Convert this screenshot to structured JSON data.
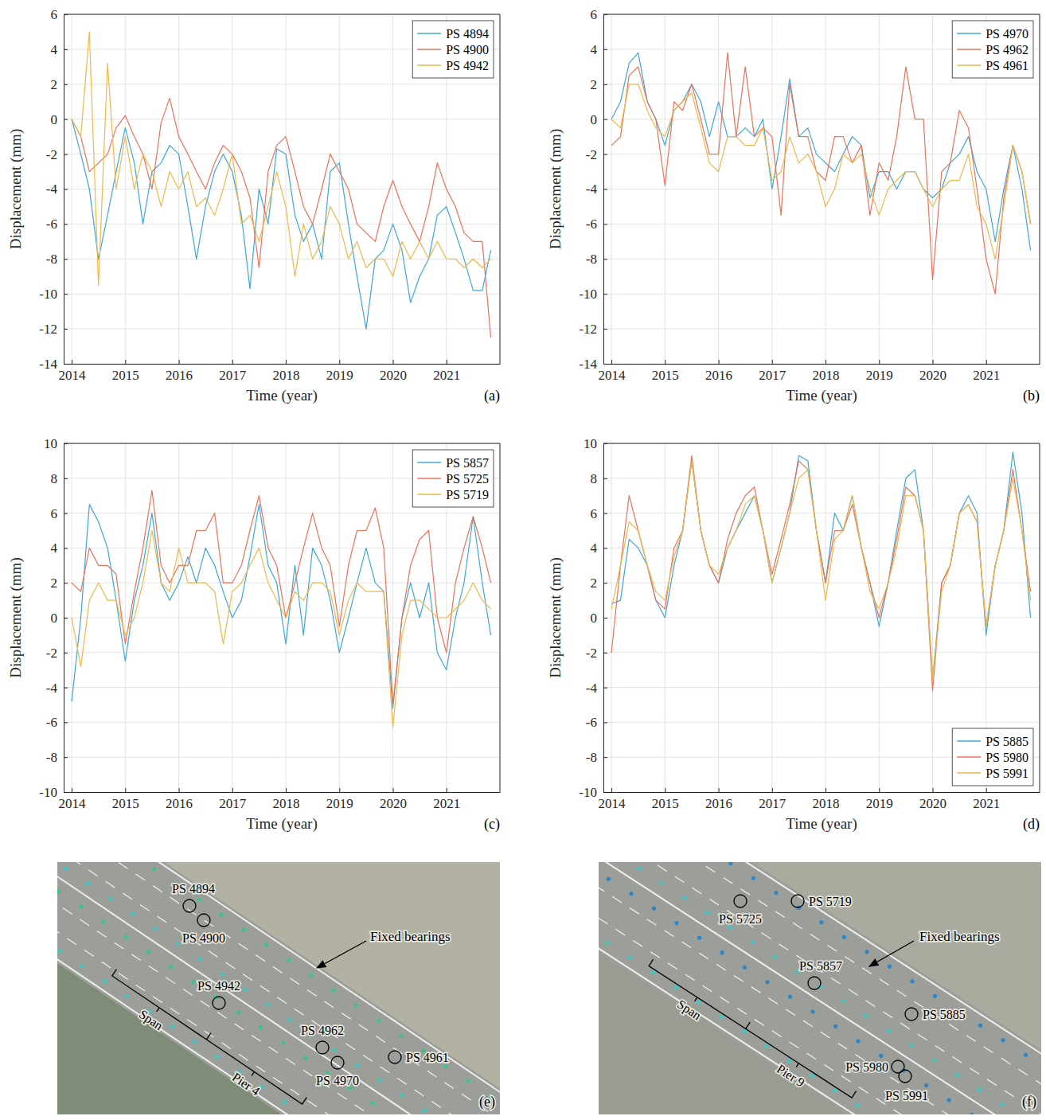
{
  "chart_data": [
    {
      "type": "line",
      "annotation": "(a)",
      "x_label": "Time (year)",
      "y_label": "Displacement (mm)",
      "xlim": [
        2013.85,
        2022
      ],
      "xticks": [
        2014,
        2015,
        2016,
        2017,
        2018,
        2019,
        2020,
        2021
      ],
      "ylim": [
        -14,
        6
      ],
      "yticks": [
        -14,
        -12,
        -10,
        -8,
        -6,
        -4,
        -2,
        0,
        2,
        4,
        6
      ],
      "grid": true,
      "legend": "upper right",
      "x": [
        2014,
        2014.17,
        2014.33,
        2014.5,
        2014.67,
        2014.83,
        2015,
        2015.17,
        2015.33,
        2015.5,
        2015.67,
        2015.83,
        2016,
        2016.17,
        2016.33,
        2016.5,
        2016.67,
        2016.83,
        2017,
        2017.17,
        2017.33,
        2017.5,
        2017.67,
        2017.83,
        2018,
        2018.17,
        2018.33,
        2018.5,
        2018.67,
        2018.83,
        2019,
        2019.17,
        2019.33,
        2019.5,
        2019.67,
        2019.83,
        2020,
        2020.17,
        2020.33,
        2020.5,
        2020.67,
        2020.83,
        2021,
        2021.17,
        2021.33,
        2021.5,
        2021.67,
        2021.83
      ],
      "series": [
        {
          "name": "PS 4894",
          "color": "#3fa7d6",
          "values": [
            0,
            -2,
            -4,
            -8,
            -5.5,
            -3,
            -0.5,
            -2.5,
            -6,
            -3,
            -2.5,
            -1.5,
            -2,
            -5,
            -8,
            -5,
            -3,
            -2,
            -3,
            -5.5,
            -9.7,
            -4,
            -6,
            -1.7,
            -2,
            -5.5,
            -7,
            -6,
            -8,
            -3,
            -2.5,
            -6,
            -9,
            -12,
            -8,
            -7.5,
            -6,
            -7.5,
            -10.5,
            -9,
            -8,
            -5.5,
            -5,
            -6.5,
            -8,
            -9.8,
            -9.8,
            -7.5
          ]
        },
        {
          "name": "PS 4900",
          "color": "#e8735a",
          "values": [
            0,
            -1,
            -3,
            -2.5,
            -2,
            -0.5,
            0.2,
            -1,
            -2,
            -4,
            -0.2,
            1.2,
            -1,
            -2,
            -3,
            -4,
            -2.5,
            -1.5,
            -2,
            -3,
            -4.5,
            -8.5,
            -3,
            -1.5,
            -1,
            -3,
            -5,
            -6,
            -4,
            -2,
            -3,
            -4,
            -6,
            -6.5,
            -7,
            -5,
            -3.5,
            -5,
            -6,
            -7,
            -5,
            -2.5,
            -4,
            -5,
            -6.5,
            -7,
            -7,
            -12.5
          ]
        },
        {
          "name": "PS 4942",
          "color": "#edb94a",
          "values": [
            0,
            -1,
            5,
            -9.5,
            3.2,
            -4,
            -1,
            -4,
            -2,
            -3,
            -5,
            -3,
            -4,
            -3,
            -5,
            -4.5,
            -5.5,
            -4,
            -2,
            -6,
            -5.5,
            -7,
            -5,
            -3,
            -5,
            -9,
            -6,
            -8,
            -7,
            -5,
            -6,
            -8,
            -7,
            -8.5,
            -8,
            -8,
            -9,
            -7,
            -8,
            -7,
            -8,
            -7,
            -8,
            -8,
            -8.5,
            -8,
            -8.5,
            -8
          ]
        }
      ]
    },
    {
      "type": "line",
      "annotation": "(b)",
      "x_label": "Time (year)",
      "y_label": "Displacement (mm)",
      "xlim": [
        2013.85,
        2022
      ],
      "xticks": [
        2014,
        2015,
        2016,
        2017,
        2018,
        2019,
        2020,
        2021
      ],
      "ylim": [
        -14,
        6
      ],
      "yticks": [
        -14,
        -12,
        -10,
        -8,
        -6,
        -4,
        -2,
        0,
        2,
        4,
        6
      ],
      "grid": true,
      "legend": "upper right",
      "x": [
        2014,
        2014.17,
        2014.33,
        2014.5,
        2014.67,
        2014.83,
        2015,
        2015.17,
        2015.33,
        2015.5,
        2015.67,
        2015.83,
        2016,
        2016.17,
        2016.33,
        2016.5,
        2016.67,
        2016.83,
        2017,
        2017.17,
        2017.33,
        2017.5,
        2017.67,
        2017.83,
        2018,
        2018.17,
        2018.33,
        2018.5,
        2018.67,
        2018.83,
        2019,
        2019.17,
        2019.33,
        2019.5,
        2019.67,
        2019.83,
        2020,
        2020.17,
        2020.33,
        2020.5,
        2020.67,
        2020.83,
        2021,
        2021.17,
        2021.33,
        2021.5,
        2021.67,
        2021.83
      ],
      "series": [
        {
          "name": "PS 4970",
          "color": "#3fa7d6",
          "values": [
            0,
            1,
            3.2,
            3.8,
            1,
            0,
            -1.5,
            0.5,
            1,
            2,
            1,
            -1,
            1,
            -1,
            -1,
            -0.5,
            -1,
            0,
            -4,
            -1,
            2.3,
            -1,
            -0.5,
            -2,
            -2.5,
            -3,
            -2,
            -1,
            -1.5,
            -4.5,
            -3,
            -3,
            -4,
            -3,
            -3,
            -4,
            -4.5,
            -4,
            -2.5,
            -2,
            -1,
            -3,
            -4,
            -7,
            -4,
            -1.5,
            -4,
            -7.5
          ]
        },
        {
          "name": "PS 4962",
          "color": "#e8735a",
          "values": [
            -1.5,
            -1,
            2.5,
            3,
            1,
            0,
            -3.8,
            1,
            0.5,
            2,
            0,
            -2,
            -2,
            3.8,
            -1,
            3,
            -1,
            -0.5,
            -1,
            -5.5,
            2,
            -1,
            -1,
            -3,
            -3.5,
            -1,
            -1,
            -2.5,
            -1.5,
            -5.5,
            -2.5,
            -3.5,
            -1,
            3,
            0,
            0,
            -9.2,
            -3,
            -2.5,
            0.5,
            -0.5,
            -4,
            -8,
            -10,
            -4.5,
            -1.5,
            -3,
            -6
          ]
        },
        {
          "name": "PS 4961",
          "color": "#edb94a",
          "values": [
            0,
            -0.5,
            2,
            2,
            0.5,
            -0.5,
            -1,
            0.5,
            1,
            1.5,
            -0.5,
            -2.5,
            -3,
            -1,
            -1,
            -1.5,
            -1.5,
            -0.5,
            -3.5,
            -3,
            -1,
            -2.5,
            -2,
            -3,
            -5,
            -4,
            -2,
            -2.5,
            -2,
            -4,
            -5.5,
            -4,
            -3.5,
            -3,
            -3,
            -4,
            -5,
            -4,
            -3.5,
            -3.5,
            -2,
            -5,
            -6,
            -8,
            -5,
            -1.5,
            -3,
            -6
          ]
        }
      ]
    },
    {
      "type": "line",
      "annotation": "(c)",
      "x_label": "Time (year)",
      "y_label": "Displacement (mm)",
      "xlim": [
        2013.85,
        2022
      ],
      "xticks": [
        2014,
        2015,
        2016,
        2017,
        2018,
        2019,
        2020,
        2021
      ],
      "ylim": [
        -10,
        10
      ],
      "yticks": [
        -10,
        -8,
        -6,
        -4,
        -2,
        0,
        2,
        4,
        6,
        8,
        10
      ],
      "grid": true,
      "legend": "upper right",
      "x": [
        2014,
        2014.17,
        2014.33,
        2014.5,
        2014.67,
        2014.83,
        2015,
        2015.17,
        2015.33,
        2015.5,
        2015.67,
        2015.83,
        2016,
        2016.17,
        2016.33,
        2016.5,
        2016.67,
        2016.83,
        2017,
        2017.17,
        2017.33,
        2017.5,
        2017.67,
        2017.83,
        2018,
        2018.17,
        2018.33,
        2018.5,
        2018.67,
        2018.83,
        2019,
        2019.17,
        2019.33,
        2019.5,
        2019.67,
        2019.83,
        2020,
        2020.17,
        2020.33,
        2020.5,
        2020.67,
        2020.83,
        2021,
        2021.17,
        2021.33,
        2021.5,
        2021.67,
        2021.83
      ],
      "series": [
        {
          "name": "PS 5857",
          "color": "#3fa7d6",
          "values": [
            -4.8,
            0,
            6.5,
            5.5,
            4,
            1,
            -2.5,
            1,
            3,
            6,
            2,
            1,
            2,
            3.5,
            2,
            4,
            3,
            1.5,
            0,
            1,
            3.5,
            6.5,
            3,
            2,
            -1.5,
            3,
            -1,
            4,
            3,
            1,
            -2,
            0,
            2,
            4,
            2,
            1.5,
            -5.2,
            0,
            2,
            0,
            2,
            -2,
            -3,
            0,
            2,
            5.8,
            2,
            -1
          ]
        },
        {
          "name": "PS 5725",
          "color": "#e8735a",
          "values": [
            2,
            1.5,
            4,
            3,
            3,
            2.5,
            -1.5,
            1.5,
            4,
            7.3,
            3,
            2,
            3,
            3,
            5,
            5,
            6,
            2,
            2,
            3,
            5,
            7,
            4,
            3,
            0,
            2,
            4,
            6,
            4,
            3,
            -0.5,
            3,
            5,
            5,
            6.3,
            4,
            -5,
            0,
            3,
            4.5,
            5,
            0,
            -2,
            2,
            4,
            5.8,
            4,
            2
          ]
        },
        {
          "name": "PS 5719",
          "color": "#edb94a",
          "values": [
            0,
            -2.8,
            1,
            2,
            1,
            1,
            -1,
            0,
            2,
            5,
            2,
            1.5,
            4,
            2,
            2,
            2,
            1.5,
            -1.5,
            1.5,
            2,
            3,
            4,
            2,
            1,
            0,
            1.5,
            1,
            2,
            2,
            1.5,
            -1,
            1,
            2,
            1.5,
            1.5,
            1.5,
            -6.3,
            -1,
            1,
            1,
            0.5,
            0,
            0,
            0.5,
            1,
            2,
            1,
            0.5
          ]
        }
      ]
    },
    {
      "type": "line",
      "annotation": "(d)",
      "x_label": "Time (year)",
      "y_label": "Displacement (mm)",
      "xlim": [
        2013.85,
        2022
      ],
      "xticks": [
        2014,
        2015,
        2016,
        2017,
        2018,
        2019,
        2020,
        2021
      ],
      "ylim": [
        -10,
        10
      ],
      "yticks": [
        -10,
        -8,
        -6,
        -4,
        -2,
        0,
        2,
        4,
        6,
        8,
        10
      ],
      "grid": true,
      "legend": "lower right",
      "x": [
        2014,
        2014.17,
        2014.33,
        2014.5,
        2014.67,
        2014.83,
        2015,
        2015.17,
        2015.33,
        2015.5,
        2015.67,
        2015.83,
        2016,
        2016.17,
        2016.33,
        2016.5,
        2016.67,
        2016.83,
        2017,
        2017.17,
        2017.33,
        2017.5,
        2017.67,
        2017.83,
        2018,
        2018.17,
        2018.33,
        2018.5,
        2018.67,
        2018.83,
        2019,
        2019.17,
        2019.33,
        2019.5,
        2019.67,
        2019.83,
        2020,
        2020.17,
        2020.33,
        2020.5,
        2020.67,
        2020.83,
        2021,
        2021.17,
        2021.33,
        2021.5,
        2021.67,
        2021.83
      ],
      "series": [
        {
          "name": "PS 5885",
          "color": "#3fa7d6",
          "values": [
            0.8,
            1,
            4.5,
            4,
            3,
            1,
            0,
            3,
            5,
            9,
            5,
            3,
            2,
            4,
            5,
            6,
            7,
            5,
            2,
            4,
            6,
            9.3,
            9,
            5,
            2,
            6,
            5,
            7,
            4,
            2,
            -0.5,
            2,
            5,
            8,
            8.5,
            5,
            -3.5,
            2,
            3,
            6,
            7,
            6,
            -1,
            3,
            5,
            9.5,
            6,
            0
          ]
        },
        {
          "name": "PS 5980",
          "color": "#e8735a",
          "values": [
            -2,
            3,
            7,
            5,
            3,
            1,
            0.5,
            4,
            5,
            9.3,
            5,
            3,
            2,
            4.5,
            6,
            7,
            7.5,
            5,
            2.5,
            4.5,
            6.5,
            9,
            8.5,
            5,
            2,
            5,
            5,
            6.5,
            4,
            2,
            0,
            2,
            4.5,
            7.5,
            7,
            5,
            -4.2,
            2,
            3,
            6,
            6.5,
            5.5,
            -0.5,
            3,
            5,
            8.5,
            5,
            1.5
          ]
        },
        {
          "name": "PS 5991",
          "color": "#edb94a",
          "values": [
            0.5,
            3,
            5.5,
            5,
            3,
            1.5,
            1,
            3.5,
            5,
            9,
            5,
            3,
            2.5,
            4,
            5,
            6.5,
            7,
            5,
            2,
            4,
            6,
            8,
            8.5,
            5,
            1,
            4.5,
            5,
            7,
            4,
            1.5,
            0.5,
            2,
            4,
            7,
            7,
            5,
            -3.5,
            1.5,
            3,
            6,
            6.5,
            5.5,
            -0.5,
            3,
            5,
            8,
            5,
            1
          ]
        }
      ]
    }
  ],
  "maps": [
    {
      "annotation": "(e)",
      "points": [
        "PS 4894",
        "PS 4900",
        "PS 4942",
        "PS 4962",
        "PS 4970",
        "PS 4961"
      ],
      "callout": "Fixed bearings",
      "span": "Span",
      "pier": "Pier 4"
    },
    {
      "annotation": "(f)",
      "points": [
        "PS 5725",
        "PS 5719",
        "PS 5857",
        "PS 5885",
        "PS 5980",
        "PS 5991"
      ],
      "callout": "Fixed bearings",
      "span": "Span",
      "pier": "Pier 9"
    }
  ]
}
